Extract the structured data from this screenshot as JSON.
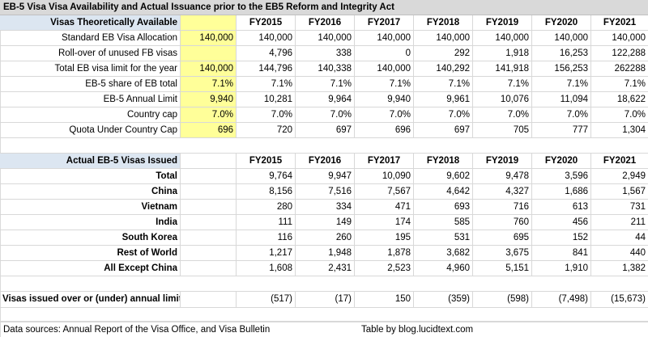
{
  "title": "EB-5 Visa Visa Availability and Actual Issuance prior to the EB5 Reform and Integrity Act",
  "years": [
    "FY2015",
    "FY2016",
    "FY2017",
    "FY2018",
    "FY2019",
    "FY2020",
    "FY2021"
  ],
  "theoretical": {
    "header": "Visas Theoretically Available",
    "rows": [
      {
        "label": "Standard EB Visa Allocation",
        "base": "140,000",
        "values": [
          "140,000",
          "140,000",
          "140,000",
          "140,000",
          "140,000",
          "140,000",
          "140,000"
        ]
      },
      {
        "label": "Roll-over of unused FB visas",
        "base": "",
        "values": [
          "4,796",
          "338",
          "0",
          "292",
          "1,918",
          "16,253",
          "122,288"
        ]
      },
      {
        "label": "Total EB visa limit for the year",
        "base": "140,000",
        "values": [
          "144,796",
          "140,338",
          "140,000",
          "140,292",
          "141,918",
          "156,253",
          "262288"
        ]
      },
      {
        "label": "EB-5 share of EB total",
        "base": "7.1%",
        "values": [
          "7.1%",
          "7.1%",
          "7.1%",
          "7.1%",
          "7.1%",
          "7.1%",
          "7.1%"
        ]
      },
      {
        "label": "EB-5 Annual Limit",
        "base": "9,940",
        "values": [
          "10,281",
          "9,964",
          "9,940",
          "9,961",
          "10,076",
          "11,094",
          "18,622"
        ]
      },
      {
        "label": "Country cap",
        "base": "7.0%",
        "values": [
          "7.0%",
          "7.0%",
          "7.0%",
          "7.0%",
          "7.0%",
          "7.0%",
          "7.0%"
        ]
      },
      {
        "label": "Quota Under Country Cap",
        "base": "696",
        "values": [
          "720",
          "697",
          "696",
          "697",
          "705",
          "777",
          "1,304"
        ]
      }
    ]
  },
  "actual": {
    "header": "Actual EB-5 Visas Issued",
    "rows": [
      {
        "label": "Total",
        "values": [
          "9,764",
          "9,947",
          "10,090",
          "9,602",
          "9,478",
          "3,596",
          "2,949"
        ]
      },
      {
        "label": "China",
        "values": [
          "8,156",
          "7,516",
          "7,567",
          "4,642",
          "4,327",
          "1,686",
          "1,567"
        ]
      },
      {
        "label": "Vietnam",
        "values": [
          "280",
          "334",
          "471",
          "693",
          "716",
          "613",
          "731"
        ]
      },
      {
        "label": "India",
        "values": [
          "111",
          "149",
          "174",
          "585",
          "760",
          "456",
          "211"
        ]
      },
      {
        "label": "South Korea",
        "values": [
          "116",
          "260",
          "195",
          "531",
          "695",
          "152",
          "44"
        ]
      },
      {
        "label": "Rest of World",
        "values": [
          "1,217",
          "1,948",
          "1,878",
          "3,682",
          "3,675",
          "841",
          "440"
        ]
      },
      {
        "label": "All Except China",
        "values": [
          "1,608",
          "2,431",
          "2,523",
          "4,960",
          "5,151",
          "1,910",
          "1,382"
        ]
      }
    ]
  },
  "summary": {
    "label": "Visas issued over or (under) annual limit",
    "values": [
      "(517)",
      "(17)",
      "150",
      "(359)",
      "(598)",
      "(7,498)",
      "(15,673)"
    ]
  },
  "footer": {
    "sources": "Data sources: Annual Report of the Visa Office, and Visa Bulletin",
    "credit": "Table by blog.lucidtext.com"
  }
}
